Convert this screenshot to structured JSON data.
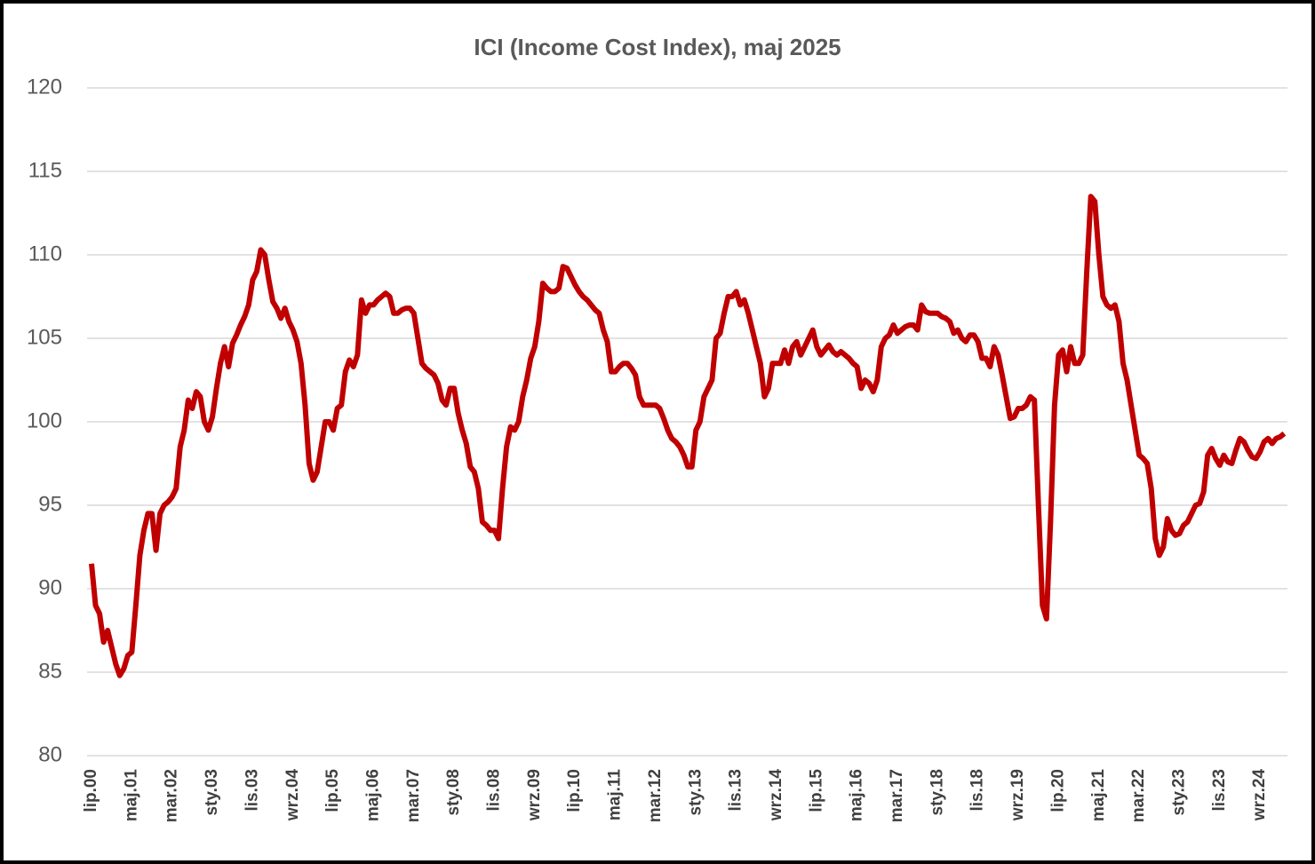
{
  "chart_data": {
    "type": "line",
    "title": "ICI (Income Cost Index), maj 2025",
    "categories": [
      "lip.00",
      null,
      null,
      null,
      null,
      null,
      null,
      null,
      null,
      null,
      "maj.01",
      null,
      null,
      null,
      null,
      null,
      null,
      null,
      null,
      null,
      "mar.02",
      null,
      null,
      null,
      null,
      null,
      null,
      null,
      null,
      null,
      "sty.03",
      null,
      null,
      null,
      null,
      null,
      null,
      null,
      null,
      null,
      "lis.03",
      null,
      null,
      null,
      null,
      null,
      null,
      null,
      null,
      null,
      "wrz.04",
      null,
      null,
      null,
      null,
      null,
      null,
      null,
      null,
      null,
      "lip.05",
      null,
      null,
      null,
      null,
      null,
      null,
      null,
      null,
      null,
      "maj.06",
      null,
      null,
      null,
      null,
      null,
      null,
      null,
      null,
      null,
      "mar.07",
      null,
      null,
      null,
      null,
      null,
      null,
      null,
      null,
      null,
      "sty.08",
      null,
      null,
      null,
      null,
      null,
      null,
      null,
      null,
      null,
      "lis.08",
      null,
      null,
      null,
      null,
      null,
      null,
      null,
      null,
      null,
      "wrz.09",
      null,
      null,
      null,
      null,
      null,
      null,
      null,
      null,
      null,
      "lip.10",
      null,
      null,
      null,
      null,
      null,
      null,
      null,
      null,
      null,
      "maj.11",
      null,
      null,
      null,
      null,
      null,
      null,
      null,
      null,
      null,
      "mar.12",
      null,
      null,
      null,
      null,
      null,
      null,
      null,
      null,
      null,
      "sty.13",
      null,
      null,
      null,
      null,
      null,
      null,
      null,
      null,
      null,
      "lis.13",
      null,
      null,
      null,
      null,
      null,
      null,
      null,
      null,
      null,
      "wrz.14",
      null,
      null,
      null,
      null,
      null,
      null,
      null,
      null,
      null,
      "lip.15",
      null,
      null,
      null,
      null,
      null,
      null,
      null,
      null,
      null,
      "maj.16",
      null,
      null,
      null,
      null,
      null,
      null,
      null,
      null,
      null,
      "mar.17",
      null,
      null,
      null,
      null,
      null,
      null,
      null,
      null,
      null,
      "sty.18",
      null,
      null,
      null,
      null,
      null,
      null,
      null,
      null,
      null,
      "lis.18",
      null,
      null,
      null,
      null,
      null,
      null,
      null,
      null,
      null,
      "wrz.19",
      null,
      null,
      null,
      null,
      null,
      null,
      null,
      null,
      null,
      "lip.20",
      null,
      null,
      null,
      null,
      null,
      null,
      null,
      null,
      null,
      "maj.21",
      null,
      null,
      null,
      null,
      null,
      null,
      null,
      null,
      null,
      "mar.22",
      null,
      null,
      null,
      null,
      null,
      null,
      null,
      null,
      null,
      "sty.23",
      null,
      null,
      null,
      null,
      null,
      null,
      null,
      null,
      null,
      "lis.23",
      null,
      null,
      null,
      null,
      null,
      null,
      null,
      null,
      null,
      "wrz.24",
      null,
      null,
      null,
      null,
      null,
      null
    ],
    "values": [
      91.5,
      89,
      88.5,
      86.8,
      87.5,
      86.5,
      85.5,
      84.8,
      85.2,
      86,
      86.2,
      89,
      92,
      93.5,
      94.5,
      94.5,
      92.3,
      94.5,
      95,
      95.2,
      95.5,
      96,
      98.5,
      99.5,
      101.3,
      100.8,
      101.8,
      101.5,
      100,
      99.5,
      100.3,
      102,
      103.5,
      104.5,
      103.3,
      104.7,
      105.2,
      105.8,
      106.3,
      107,
      108.5,
      109,
      110.3,
      110,
      108.5,
      107.2,
      106.8,
      106.2,
      106.8,
      106,
      105.5,
      104.8,
      103.5,
      101,
      97.5,
      96.5,
      97,
      98.5,
      100,
      100,
      99.5,
      100.8,
      101,
      103,
      103.7,
      103.3,
      104,
      107.3,
      106.5,
      107,
      107,
      107.3,
      107.5,
      107.7,
      107.5,
      106.5,
      106.5,
      106.7,
      106.8,
      106.8,
      106.5,
      105,
      103.5,
      103.2,
      103,
      102.8,
      102.3,
      101.3,
      101,
      102,
      102,
      100.5,
      99.5,
      98.7,
      97.3,
      97,
      96,
      94,
      93.8,
      93.5,
      93.5,
      93,
      96,
      98.5,
      99.7,
      99.5,
      100,
      101.5,
      102.5,
      103.8,
      104.5,
      106,
      108.3,
      108,
      107.8,
      107.8,
      108,
      109.3,
      109.2,
      108.7,
      108.2,
      107.8,
      107.5,
      107.3,
      107,
      106.7,
      106.5,
      105.5,
      104.8,
      103,
      103,
      103.3,
      103.5,
      103.5,
      103.2,
      102.8,
      101.5,
      101,
      101,
      101,
      101,
      100.8,
      100.2,
      99.5,
      99,
      98.8,
      98.5,
      98,
      97.3,
      97.3,
      99.5,
      100,
      101.5,
      102,
      102.5,
      105,
      105.3,
      106.5,
      107.5,
      107.5,
      107.8,
      107,
      107.3,
      106.5,
      105.5,
      104.5,
      103.5,
      101.5,
      102,
      103.5,
      103.5,
      103.5,
      104.3,
      103.5,
      104.5,
      104.8,
      104,
      104.5,
      105,
      105.5,
      104.5,
      104,
      104.3,
      104.6,
      104.2,
      104,
      104.2,
      104,
      103.8,
      103.5,
      103.3,
      102,
      102.5,
      102.3,
      101.8,
      102.5,
      104.5,
      105,
      105.2,
      105.8,
      105.3,
      105.5,
      105.7,
      105.8,
      105.8,
      105.5,
      107,
      106.6,
      106.5,
      106.5,
      106.5,
      106.3,
      106.2,
      106,
      105.3,
      105.5,
      105,
      104.8,
      105.2,
      105.2,
      104.8,
      103.8,
      103.8,
      103.3,
      104.5,
      104,
      102.8,
      101.5,
      100.2,
      100.3,
      100.8,
      100.8,
      101,
      101.5,
      101.3,
      95,
      89,
      88.2,
      94,
      101,
      104,
      104.3,
      103,
      104.5,
      103.5,
      103.5,
      104,
      109,
      113.5,
      113.2,
      110,
      107.5,
      107,
      106.8,
      107,
      106,
      103.5,
      102.5,
      101,
      99.5,
      98,
      97.8,
      97.5,
      96,
      93,
      92,
      92.5,
      94.2,
      93.5,
      93.2,
      93.3,
      93.8,
      94,
      94.5,
      95,
      95.1,
      95.8,
      98,
      98.4,
      97.8,
      97.4,
      98,
      97.6,
      97.5,
      98.3,
      99,
      98.8,
      98.3,
      97.9,
      97.8,
      98.2,
      98.8,
      99,
      98.7,
      99,
      99.1,
      99.3
    ],
    "color": "#c00000",
    "ylim": [
      80,
      120
    ],
    "yticks": [
      80,
      85,
      90,
      95,
      100,
      105,
      110,
      115,
      120
    ],
    "grid": true
  }
}
